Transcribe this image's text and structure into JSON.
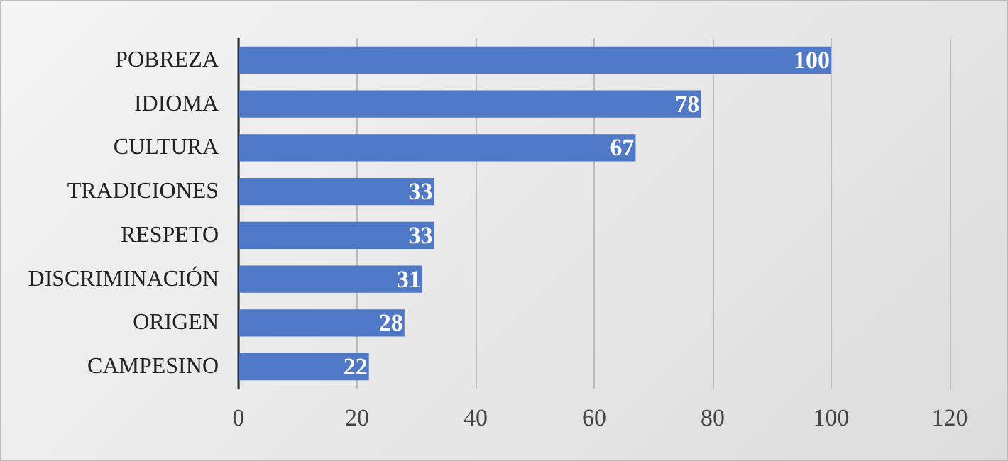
{
  "chart_data": {
    "type": "bar",
    "orientation": "horizontal",
    "categories": [
      "POBREZA",
      "IDIOMA",
      "CULTURA",
      "TRADICIONES",
      "RESPETO",
      "DISCRIMINACIÓN",
      "ORIGEN",
      "CAMPESINO"
    ],
    "values": [
      100,
      78,
      67,
      33,
      33,
      31,
      28,
      22
    ],
    "color": "#4f79c6",
    "xlim": [
      0,
      120
    ],
    "xticks": [
      0,
      20,
      40,
      60,
      80,
      100,
      120
    ],
    "grid": "x",
    "data_labels": true
  }
}
